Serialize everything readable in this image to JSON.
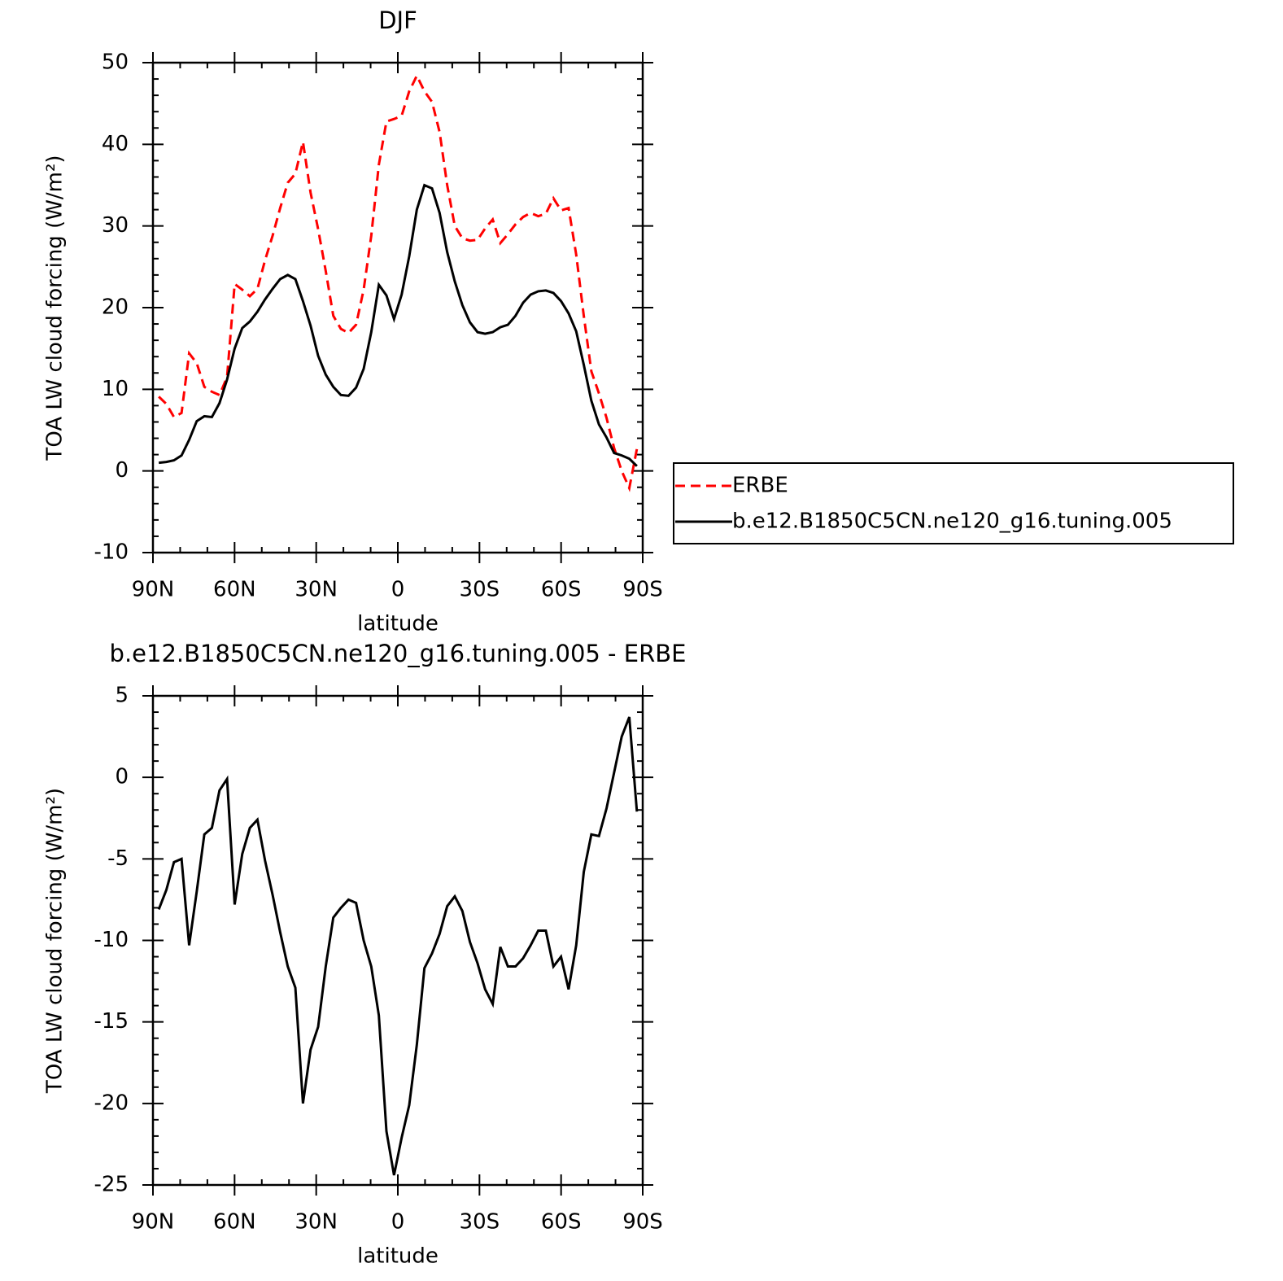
{
  "chart_data": [
    {
      "type": "line",
      "title": "DJF",
      "ylabel": "TOA LW cloud forcing (W/m²)",
      "xlabel": "latitude",
      "xlim": [
        90,
        -90
      ],
      "xticks": [
        {
          "value": 90,
          "label": "90N"
        },
        {
          "value": 60,
          "label": "60N"
        },
        {
          "value": 30,
          "label": "30N"
        },
        0,
        {
          "value": -30,
          "label": "30S"
        },
        {
          "value": -60,
          "label": "60S"
        },
        {
          "value": -90,
          "label": "90S"
        }
      ],
      "ylim": [
        -10,
        50
      ],
      "yticks": [
        -10,
        0,
        10,
        20,
        30,
        40,
        50
      ],
      "legend": "right",
      "x": [
        87.86,
        85.07,
        82.28,
        79.49,
        76.7,
        73.91,
        71.12,
        68.34,
        65.55,
        62.76,
        59.97,
        57.18,
        54.39,
        51.6,
        48.81,
        46.03,
        43.24,
        40.45,
        37.66,
        34.87,
        32.08,
        29.29,
        26.5,
        23.72,
        20.93,
        18.14,
        15.35,
        12.56,
        9.77,
        6.98,
        4.19,
        1.4,
        -1.4,
        -4.19,
        -6.98,
        -9.77,
        -12.56,
        -15.35,
        -18.14,
        -20.93,
        -23.72,
        -26.5,
        -29.29,
        -32.08,
        -34.87,
        -37.66,
        -40.45,
        -43.24,
        -46.03,
        -48.81,
        -51.6,
        -54.39,
        -57.18,
        -59.97,
        -62.76,
        -65.55,
        -68.34,
        -71.12,
        -73.91,
        -76.7,
        -79.49,
        -82.28,
        -85.07,
        -87.86
      ],
      "series": [
        {
          "name": "ERBE",
          "color": "#ff0000",
          "linestyle": "dashed",
          "values": [
            9.1,
            8.2,
            6.6,
            7.1,
            14.4,
            13.2,
            10.3,
            9.7,
            9.3,
            11.5,
            22.9,
            22.2,
            21.4,
            22.3,
            25.8,
            28.8,
            32.2,
            35.3,
            36.4,
            40.3,
            34.1,
            29.6,
            24.5,
            19.0,
            17.4,
            16.9,
            17.9,
            22.2,
            28.8,
            37.5,
            42.8,
            43.1,
            43.5,
            46.5,
            48.4,
            46.5,
            45.2,
            41.5,
            35.0,
            30.0,
            28.5,
            28.2,
            28.3,
            29.7,
            30.8,
            27.9,
            29.0,
            30.2,
            31.1,
            31.6,
            31.2,
            31.5,
            33.4,
            31.9,
            32.2,
            26.5,
            19.0,
            12.2,
            9.5,
            6.5,
            2.8,
            0.0,
            -2.1,
            2.7
          ]
        },
        {
          "name": "b.e12.B1850C5CN.ne120_g16.tuning.005",
          "color": "#000000",
          "linestyle": "solid",
          "values": [
            1.0,
            1.1,
            1.3,
            1.9,
            3.8,
            6.1,
            6.7,
            6.6,
            8.3,
            11.2,
            15.0,
            17.5,
            18.3,
            19.5,
            21.0,
            22.3,
            23.5,
            24.0,
            23.5,
            20.8,
            17.8,
            14.1,
            11.8,
            10.3,
            9.3,
            9.2,
            10.2,
            12.5,
            17.0,
            22.8,
            21.5,
            18.6,
            21.6,
            26.3,
            32.0,
            35.0,
            34.6,
            31.6,
            26.8,
            23.2,
            20.3,
            18.2,
            17.0,
            16.8,
            17.0,
            17.6,
            17.9,
            19.0,
            20.6,
            21.6,
            22.0,
            22.1,
            21.8,
            20.8,
            19.3,
            17.1,
            13.0,
            8.6,
            5.7,
            4.1,
            2.2,
            1.9,
            1.5,
            0.6
          ]
        }
      ]
    },
    {
      "type": "line",
      "title": "b.e12.B1850C5CN.ne120_g16.tuning.005 - ERBE",
      "ylabel": "TOA LW cloud forcing (W/m²)",
      "xlabel": "latitude",
      "xlim": [
        90,
        -90
      ],
      "xticks": [
        {
          "value": 90,
          "label": "90N"
        },
        {
          "value": 60,
          "label": "60N"
        },
        {
          "value": 30,
          "label": "30N"
        },
        0,
        {
          "value": -30,
          "label": "30S"
        },
        {
          "value": -60,
          "label": "60S"
        },
        {
          "value": -90,
          "label": "90S"
        }
      ],
      "ylim": [
        -25,
        5
      ],
      "yticks": [
        -25,
        -20,
        -15,
        -10,
        -5,
        0,
        5
      ],
      "x": [
        87.86,
        85.07,
        82.28,
        79.49,
        76.7,
        73.91,
        71.12,
        68.34,
        65.55,
        62.76,
        59.97,
        57.18,
        54.39,
        51.6,
        48.81,
        46.03,
        43.24,
        40.45,
        37.66,
        34.87,
        32.08,
        29.29,
        26.5,
        23.72,
        20.93,
        18.14,
        15.35,
        12.56,
        9.77,
        6.98,
        4.19,
        1.4,
        -1.4,
        -4.19,
        -6.98,
        -9.77,
        -12.56,
        -15.35,
        -18.14,
        -20.93,
        -23.72,
        -26.5,
        -29.29,
        -32.08,
        -34.87,
        -37.66,
        -40.45,
        -43.24,
        -46.03,
        -48.81,
        -51.6,
        -54.39,
        -57.18,
        -59.97,
        -62.76,
        -65.55,
        -68.34,
        -71.12,
        -73.91,
        -76.7,
        -79.49,
        -82.28,
        -85.07,
        -87.86
      ],
      "series": [
        {
          "color": "#000000",
          "linestyle": "solid",
          "values": [
            -8.1,
            -6.9,
            -5.2,
            -5.0,
            -10.3,
            -7.0,
            -3.5,
            -3.1,
            -0.8,
            -0.1,
            -7.8,
            -4.7,
            -3.1,
            -2.6,
            -5.1,
            -7.2,
            -9.5,
            -11.6,
            -12.9,
            -20.0,
            -16.7,
            -15.3,
            -11.6,
            -8.6,
            -8.0,
            -7.5,
            -7.7,
            -10.0,
            -11.6,
            -14.6,
            -21.7,
            -24.4,
            -22.1,
            -20.1,
            -16.4,
            -11.7,
            -10.8,
            -9.6,
            -7.9,
            -7.3,
            -8.2,
            -10.1,
            -11.4,
            -13.0,
            -13.9,
            -10.4,
            -11.6,
            -11.6,
            -11.1,
            -10.3,
            -9.4,
            -9.4,
            -11.6,
            -11.0,
            -13.0,
            -10.3,
            -5.8,
            -3.5,
            -3.6,
            -1.9,
            0.3,
            2.5,
            3.7,
            -2.1
          ]
        }
      ]
    }
  ]
}
